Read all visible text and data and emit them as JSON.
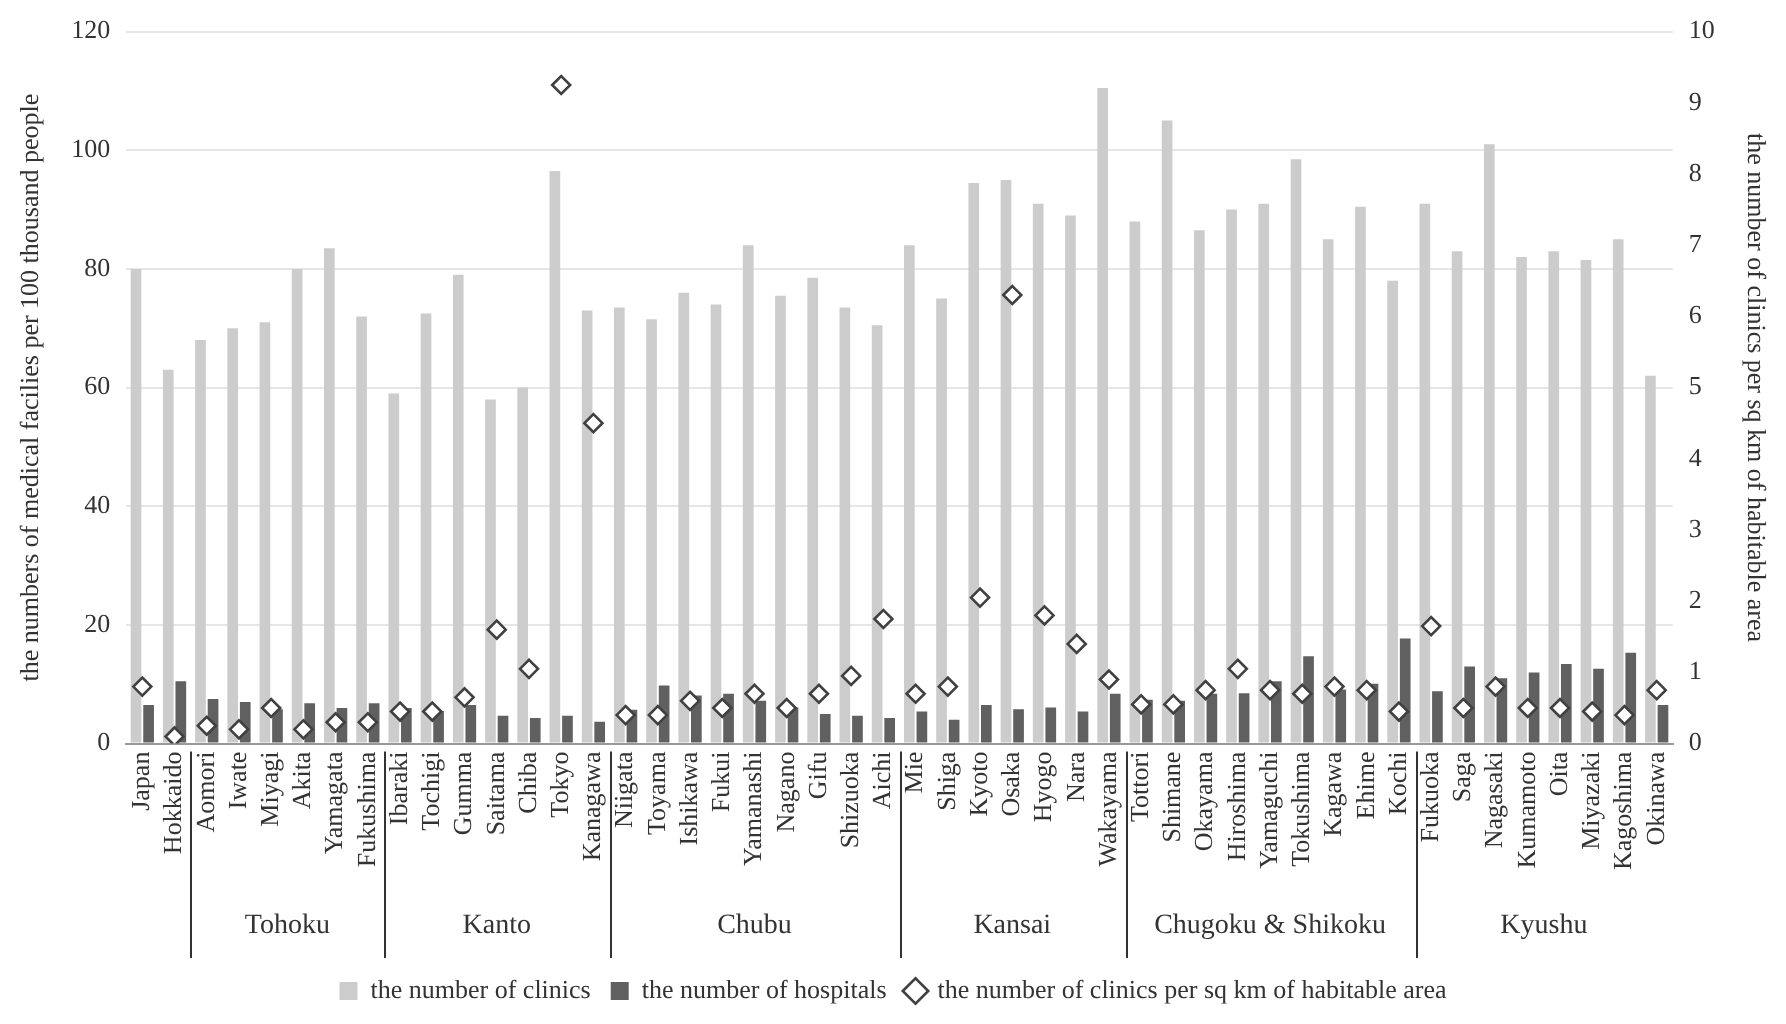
{
  "chart_data": {
    "type": "bar",
    "xlabel": null,
    "ylabel": "the numbers of medical facilies per 100 thousand people",
    "y2label": "the number of clinics per sq km of habitable area",
    "categories": [
      "Japan",
      "Hokkaido",
      "Aomori",
      "Iwate",
      "Miyagi",
      "Akita",
      "Yamagata",
      "Fukushima",
      "Ibaraki",
      "Tochigi",
      "Gumma",
      "Saitama",
      "Chiba",
      "Tokyo",
      "Kanagawa",
      "Niigata",
      "Toyama",
      "Ishikawa",
      "Fukui",
      "Yamanashi",
      "Nagano",
      "Gifu",
      "Shizuoka",
      "Aichi",
      "Mie",
      "Shiga",
      "Kyoto",
      "Osaka",
      "Hyogo",
      "Nara",
      "Wakayama",
      "Tottori",
      "Shimane",
      "Okayama",
      "Hiroshima",
      "Yamaguchi",
      "Tokushima",
      "Kagawa",
      "Ehime",
      "Kochi",
      "Fukuoka",
      "Saga",
      "Nagasaki",
      "Kumamoto",
      "Oita",
      "Miyazaki",
      "Kagoshima",
      "Okinawa"
    ],
    "series": [
      {
        "name": "the number of clinics",
        "type": "bar",
        "color": "#cccccc",
        "values": [
          80,
          63,
          68,
          70,
          71,
          80,
          83.5,
          72,
          59,
          72.5,
          79,
          58,
          60,
          96.5,
          73,
          73.5,
          71.5,
          76,
          74,
          84,
          75.5,
          78.5,
          73.5,
          70.5,
          84,
          75,
          94.5,
          95,
          91,
          89,
          110.5,
          88,
          105,
          86.5,
          90,
          91,
          98.5,
          85,
          90.5,
          78,
          91,
          83,
          101,
          82,
          83,
          81.5,
          85,
          62
        ]
      },
      {
        "name": "the number of hospitals",
        "type": "bar",
        "color": "#606060",
        "values": [
          6.5,
          10.5,
          7.5,
          7,
          5.8,
          6.8,
          6,
          6.8,
          6,
          5.5,
          6.5,
          4.7,
          4.3,
          4.7,
          3.7,
          5.7,
          9.8,
          8.1,
          8.4,
          7.2,
          6.1,
          5,
          4.7,
          4.3,
          5.4,
          4,
          6.5,
          5.8,
          6.1,
          5.4,
          8.4,
          7.4,
          7.2,
          8.4,
          8.5,
          10.5,
          14.7,
          9.1,
          10.1,
          17.7,
          8.8,
          13,
          11,
          12,
          13.4,
          12.6,
          15.3,
          6.5
        ]
      },
      {
        "name": "the number of clinics per sq km of habitable area",
        "type": "scatter",
        "axis": "y2",
        "marker": "diamond",
        "color": "#404040",
        "values": [
          0.8,
          0.1,
          0.25,
          0.2,
          0.5,
          0.2,
          0.3,
          0.3,
          0.45,
          0.45,
          0.65,
          1.6,
          1.05,
          9.25,
          4.5,
          0.4,
          0.4,
          0.6,
          0.5,
          0.7,
          0.5,
          0.7,
          0.95,
          1.75,
          0.7,
          0.8,
          2.05,
          6.3,
          1.8,
          1.4,
          0.9,
          0.55,
          0.55,
          0.75,
          1.05,
          0.75,
          0.7,
          0.8,
          0.75,
          0.45,
          1.65,
          0.5,
          0.8,
          0.5,
          0.5,
          0.45,
          0.4,
          0.75
        ]
      }
    ],
    "ylim": [
      0,
      120
    ],
    "yticks": [
      0,
      20,
      40,
      60,
      80,
      100,
      120
    ],
    "y2lim": [
      0,
      10
    ],
    "y2ticks": [
      0,
      1,
      2,
      3,
      4,
      5,
      6,
      7,
      8,
      9,
      10
    ],
    "grid": "y",
    "legend": "bottom",
    "annotations": [
      "Tohoku",
      "Kanto",
      "Chubu",
      "Kansai",
      "Chugoku & Shikoku",
      "Kyushu"
    ]
  }
}
